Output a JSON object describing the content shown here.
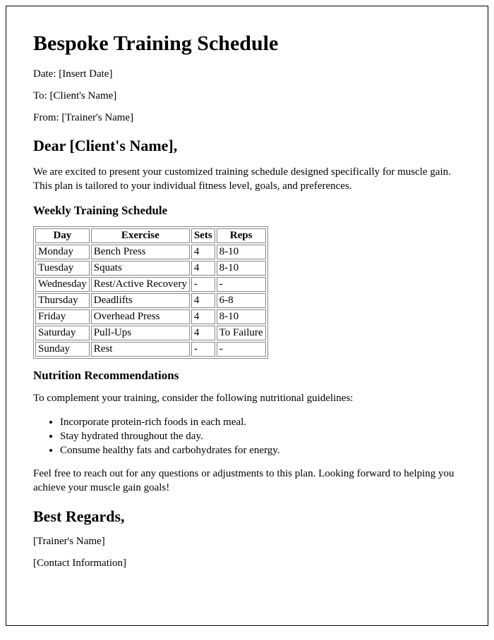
{
  "title": "Bespoke Training Schedule",
  "meta": {
    "date_label": "Date: [Insert Date]",
    "to_label": "To: [Client's Name]",
    "from_label": "From: [Trainer's Name]"
  },
  "salutation": "Dear [Client's Name],",
  "intro": "We are excited to present your customized training schedule designed specifically for muscle gain. This plan is tailored to your individual fitness level, goals, and preferences.",
  "schedule_heading": "Weekly Training Schedule",
  "schedule": {
    "columns": [
      "Day",
      "Exercise",
      "Sets",
      "Reps"
    ],
    "rows": [
      [
        "Monday",
        "Bench Press",
        "4",
        "8-10"
      ],
      [
        "Tuesday",
        "Squats",
        "4",
        "8-10"
      ],
      [
        "Wednesday",
        "Rest/Active Recovery",
        "-",
        "-"
      ],
      [
        "Thursday",
        "Deadlifts",
        "4",
        "6-8"
      ],
      [
        "Friday",
        "Overhead Press",
        "4",
        "8-10"
      ],
      [
        "Saturday",
        "Pull-Ups",
        "4",
        "To Failure"
      ],
      [
        "Sunday",
        "Rest",
        "-",
        "-"
      ]
    ]
  },
  "nutrition_heading": "Nutrition Recommendations",
  "nutrition_intro": "To complement your training, consider the following nutritional guidelines:",
  "nutrition_items": [
    "Incorporate protein-rich foods in each meal.",
    "Stay hydrated throughout the day.",
    "Consume healthy fats and carbohydrates for energy."
  ],
  "outro": "Feel free to reach out for any questions or adjustments to this plan. Looking forward to helping you achieve your muscle gain goals!",
  "closing": "Best Regards,",
  "closing_name": "[Trainer's Name]",
  "closing_contact": "[Contact Information]",
  "colors": {
    "text": "#000000",
    "border": "#888888",
    "background": "#ffffff"
  },
  "typography": {
    "base_family": "Times New Roman, serif",
    "h1_size": 30,
    "h2_size": 22,
    "h3_size": 17,
    "body_size": 15
  }
}
